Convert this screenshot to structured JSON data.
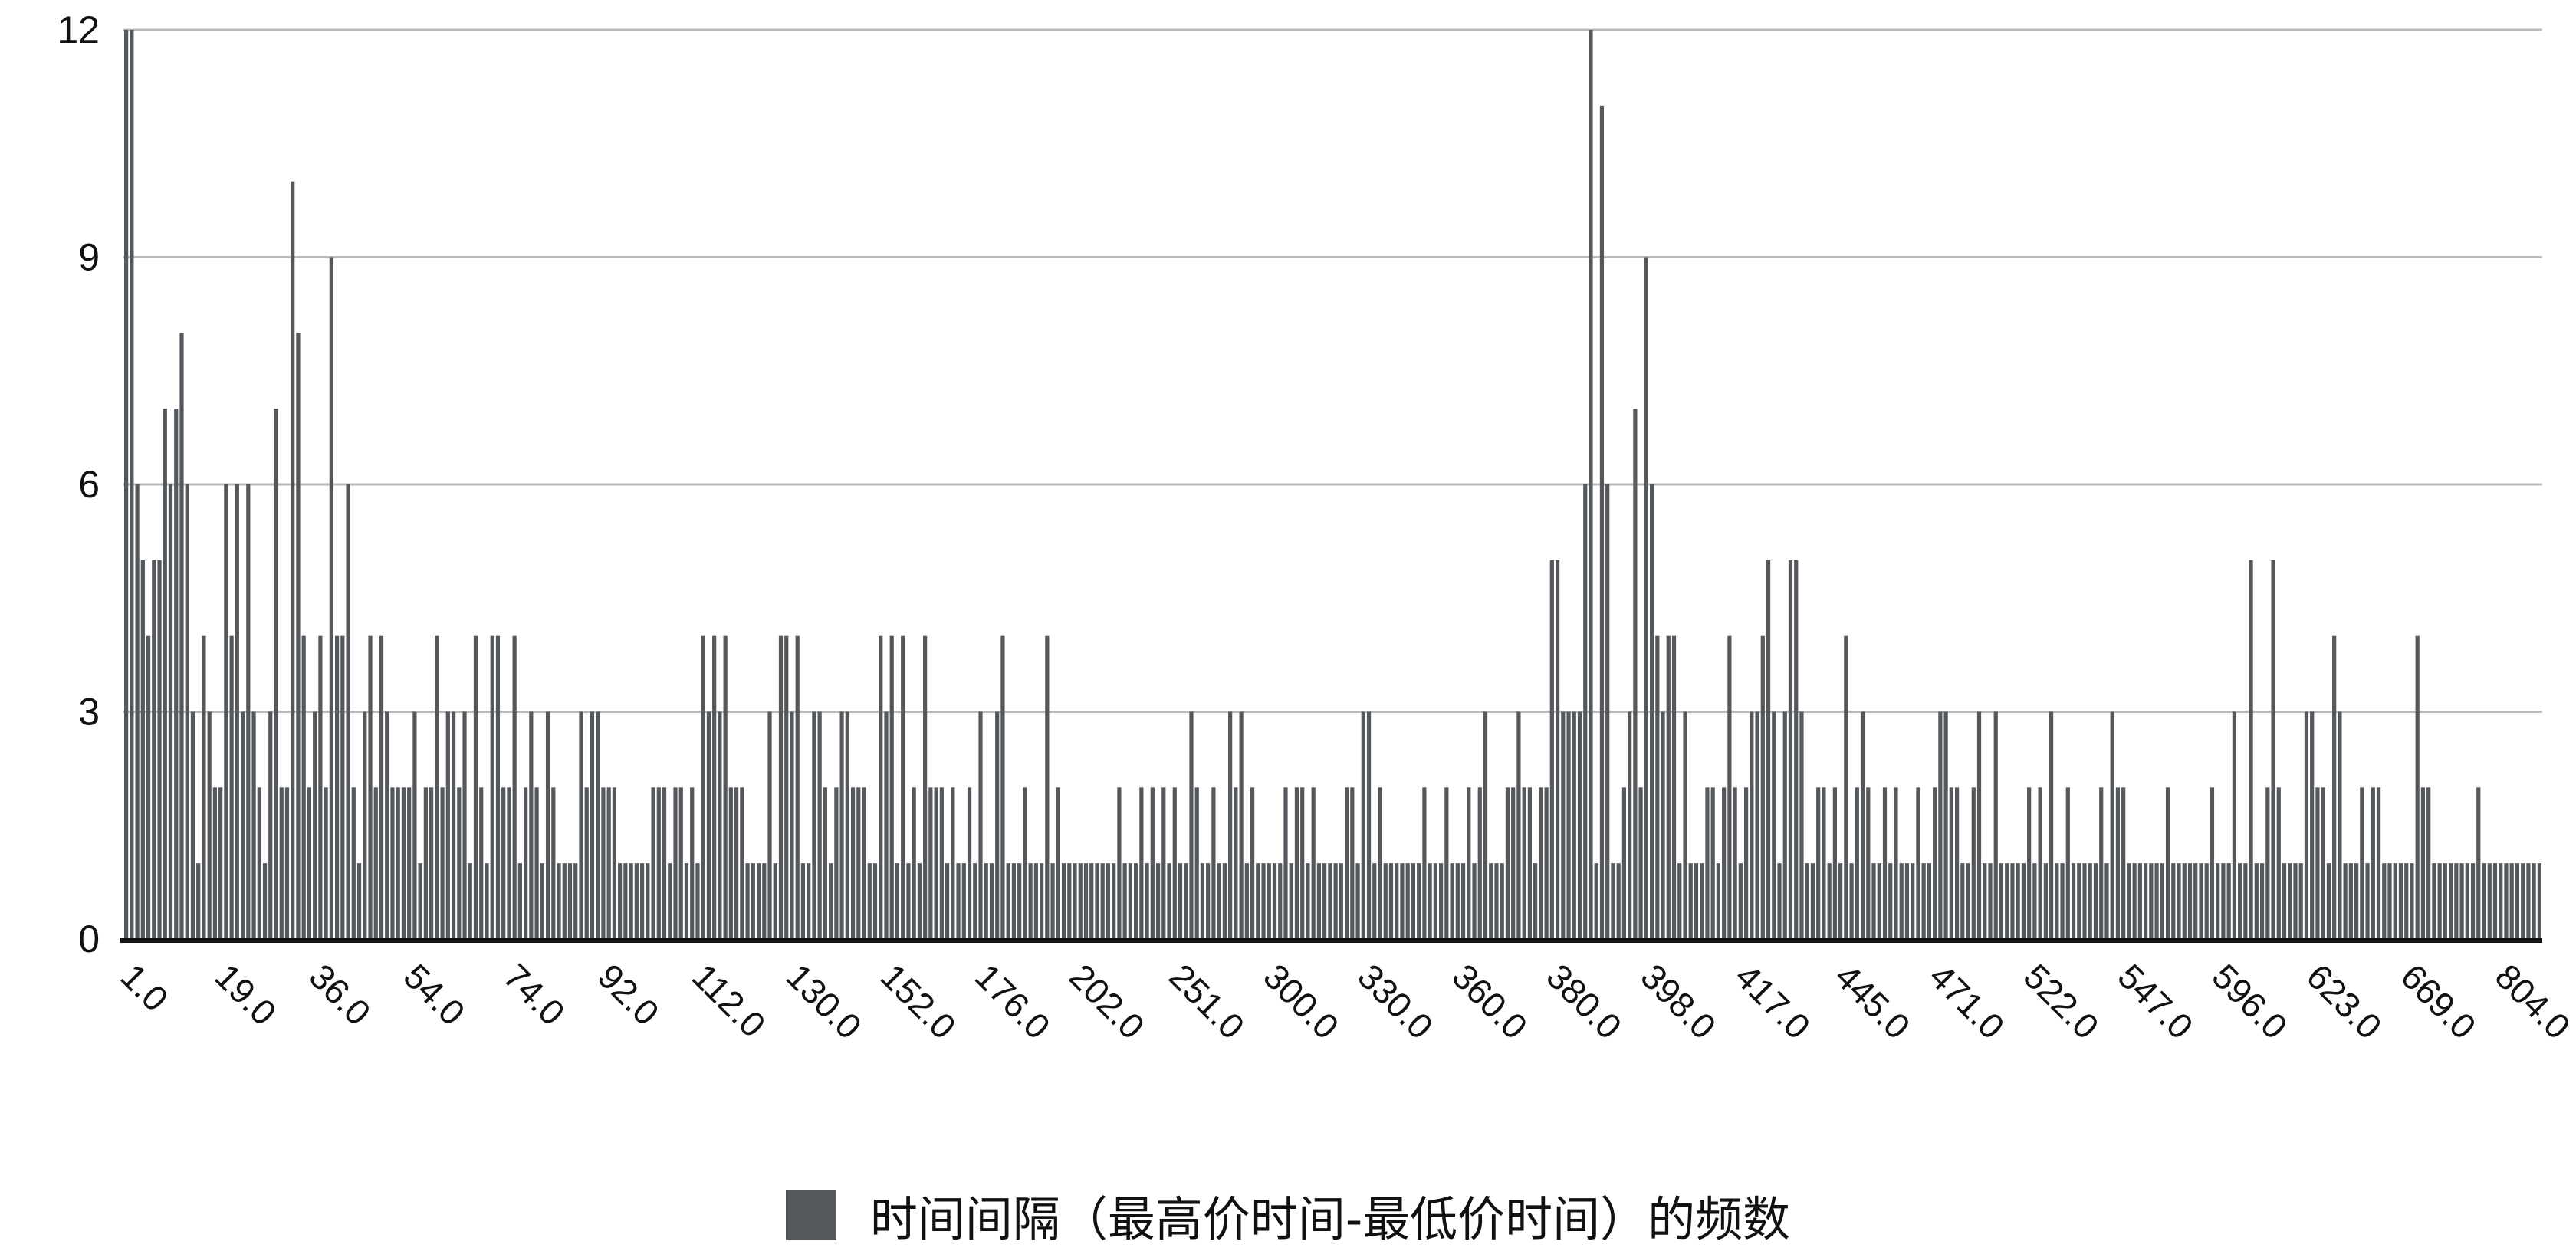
{
  "chart_data": {
    "type": "bar",
    "title": "",
    "xlabel": "",
    "ylabel": "",
    "ylim": [
      0,
      12
    ],
    "y_ticks": [
      0,
      3,
      6,
      9,
      12
    ],
    "grid": true,
    "legend_position": "bottom",
    "x_tick_labels": [
      "1.0",
      "19.0",
      "36.0",
      "54.0",
      "74.0",
      "92.0",
      "112.0",
      "130.0",
      "152.0",
      "176.0",
      "202.0",
      "251.0",
      "300.0",
      "330.0",
      "360.0",
      "380.0",
      "398.0",
      "417.0",
      "445.0",
      "471.0",
      "522.0",
      "547.0",
      "596.0",
      "623.0",
      "669.0",
      "804.0"
    ],
    "series": [
      {
        "name": "时间间隔（最高价时间-最低价时间）的频数",
        "color": "#54585c",
        "values": [
          12,
          12,
          6,
          5,
          4,
          5,
          5,
          7,
          6,
          7,
          8,
          6,
          3,
          1,
          4,
          3,
          2,
          2,
          6,
          4,
          6,
          3,
          6,
          3,
          2,
          1,
          3,
          7,
          2,
          2,
          10,
          8,
          4,
          2,
          3,
          4,
          2,
          9,
          4,
          4,
          6,
          2,
          1,
          3,
          4,
          2,
          4,
          3,
          2,
          2,
          2,
          2,
          3,
          1,
          2,
          2,
          4,
          2,
          3,
          3,
          2,
          3,
          1,
          4,
          2,
          1,
          4,
          4,
          2,
          2,
          4,
          1,
          2,
          3,
          2,
          1,
          3,
          2,
          1,
          1,
          1,
          1,
          3,
          2,
          3,
          3,
          2,
          2,
          2,
          1,
          1,
          1,
          1,
          1,
          1,
          2,
          2,
          2,
          1,
          2,
          2,
          1,
          2,
          1,
          4,
          3,
          4,
          3,
          4,
          2,
          2,
          2,
          1,
          1,
          1,
          1,
          3,
          1,
          4,
          4,
          3,
          4,
          1,
          1,
          3,
          3,
          2,
          1,
          2,
          3,
          3,
          2,
          2,
          2,
          1,
          1,
          4,
          3,
          4,
          1,
          4,
          1,
          2,
          1,
          4,
          2,
          2,
          2,
          1,
          2,
          1,
          1,
          2,
          1,
          3,
          1,
          1,
          3,
          4,
          1,
          1,
          1,
          2,
          1,
          1,
          1,
          4,
          1,
          2,
          1,
          1,
          1,
          1,
          1,
          1,
          1,
          1,
          1,
          1,
          2,
          1,
          1,
          1,
          2,
          1,
          2,
          1,
          2,
          1,
          2,
          1,
          1,
          3,
          2,
          1,
          1,
          2,
          1,
          1,
          3,
          2,
          3,
          1,
          2,
          1,
          1,
          1,
          1,
          1,
          2,
          1,
          2,
          2,
          1,
          2,
          1,
          1,
          1,
          1,
          1,
          2,
          2,
          1,
          3,
          3,
          1,
          2,
          1,
          1,
          1,
          1,
          1,
          1,
          1,
          2,
          1,
          1,
          1,
          2,
          1,
          1,
          1,
          2,
          1,
          2,
          3,
          1,
          1,
          1,
          2,
          2,
          3,
          2,
          2,
          1,
          2,
          2,
          5,
          5,
          3,
          3,
          3,
          3,
          6,
          12,
          1,
          11,
          6,
          1,
          1,
          2,
          3,
          7,
          2,
          9,
          6,
          4,
          3,
          4,
          4,
          1,
          3,
          1,
          1,
          1,
          2,
          2,
          1,
          2,
          4,
          2,
          1,
          2,
          3,
          3,
          4,
          5,
          3,
          1,
          3,
          5,
          5,
          3,
          1,
          1,
          2,
          2,
          1,
          2,
          1,
          4,
          1,
          2,
          3,
          2,
          1,
          1,
          2,
          1,
          2,
          1,
          1,
          1,
          2,
          1,
          1,
          2,
          3,
          3,
          2,
          2,
          1,
          1,
          2,
          3,
          1,
          1,
          3,
          1,
          1,
          1,
          1,
          1,
          2,
          1,
          2,
          1,
          3,
          1,
          1,
          2,
          1,
          1,
          1,
          1,
          1,
          2,
          1,
          3,
          2,
          2,
          1,
          1,
          1,
          1,
          1,
          1,
          1,
          2,
          1,
          1,
          1,
          1,
          1,
          1,
          1,
          2,
          1,
          1,
          1,
          3,
          1,
          1,
          5,
          1,
          1,
          2,
          5,
          2,
          1,
          1,
          1,
          1,
          3,
          3,
          2,
          2,
          1,
          4,
          3,
          1,
          1,
          1,
          2,
          1,
          2,
          2,
          1,
          1,
          1,
          1,
          1,
          1,
          4,
          2,
          2,
          1,
          1,
          1,
          1,
          1,
          1,
          1,
          1,
          2,
          1,
          1,
          1,
          1,
          1,
          1,
          1,
          1,
          1,
          1,
          1
        ]
      }
    ]
  },
  "legend": {
    "label": "时间间隔（最高价时间-最低价时间）的频数"
  },
  "colors": {
    "bar": "#54585c",
    "grid": "#b9b9b9",
    "axis": "#111111"
  }
}
